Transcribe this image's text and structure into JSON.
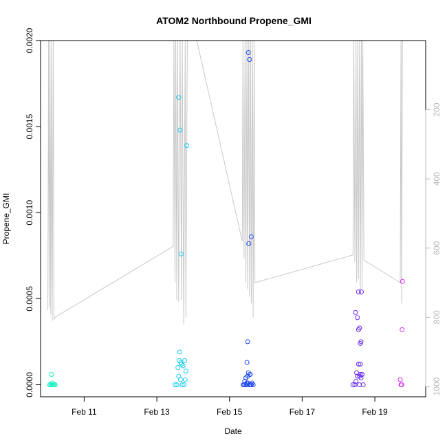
{
  "chart_data": {
    "type": "scatter",
    "title": "ATOM2 Northbound Propene_GMI",
    "xlabel": "Date",
    "ylabel": "Propene_GMI",
    "x_unit": "day of February 2017",
    "xlim": [
      9.8,
      20.4
    ],
    "ylim": [
      -7e-05,
      0.002
    ],
    "x_ticks": [
      {
        "value": 11,
        "label": "Feb 11"
      },
      {
        "value": 13,
        "label": "Feb 13"
      },
      {
        "value": 15,
        "label": "Feb 15"
      },
      {
        "value": 17,
        "label": "Feb 17"
      },
      {
        "value": 19,
        "label": "Feb 19"
      }
    ],
    "y_ticks": [
      {
        "value": 0.0,
        "label": "0.0000"
      },
      {
        "value": 0.0005,
        "label": "0.0005"
      },
      {
        "value": 0.001,
        "label": "0.0010"
      },
      {
        "value": 0.0015,
        "label": "0.0015"
      },
      {
        "value": 0.002,
        "label": "0.0020"
      }
    ],
    "right_axis": {
      "label": "",
      "lim": [
        1030,
        0
      ],
      "ticks": [
        {
          "value": 200,
          "label": "200"
        },
        {
          "value": 400,
          "label": "400"
        },
        {
          "value": 600,
          "label": "600"
        },
        {
          "value": 800,
          "label": "800"
        },
        {
          "value": 1000,
          "label": "1000"
        }
      ],
      "color": "#b5b5b5"
    },
    "grid": false,
    "legend": "none",
    "series": [
      {
        "color": "#1CF0C4",
        "marker": "open-circle",
        "x": [
          10.05,
          10.08,
          10.1,
          10.12,
          10.15,
          10.18,
          10.2,
          10.1,
          10.13
        ],
        "y": [
          0.0,
          0.0,
          0.0,
          1e-05,
          0.0,
          0.0,
          0.0,
          6e-05,
          0.0
        ]
      },
      {
        "color": "#1ACBF0",
        "marker": "open-circle",
        "x": [
          13.5,
          13.55,
          13.6,
          13.62,
          13.65,
          13.66,
          13.68,
          13.7,
          13.72,
          13.75,
          13.78,
          13.8,
          13.82,
          13.58,
          13.6,
          13.64,
          13.67,
          13.77,
          13.63
        ],
        "y": [
          0.0,
          0.0,
          5e-05,
          0.00014,
          3e-05,
          0.00013,
          0.00012,
          0.0,
          0.00011,
          0.0,
          3e-05,
          8e-05,
          0.00139,
          0.0001,
          0.00167,
          0.00148,
          0.00076,
          0.00014,
          0.00019
        ]
      },
      {
        "color": "#1D46F0",
        "marker": "open-circle",
        "x": [
          15.38,
          15.4,
          15.42,
          15.45,
          15.47,
          15.48,
          15.5,
          15.52,
          15.55,
          15.57,
          15.58,
          15.6,
          15.62,
          15.65,
          15.5,
          15.48,
          15.52,
          15.55,
          15.6,
          15.53,
          15.56,
          15.45,
          15.5,
          15.43
        ],
        "y": [
          0.0,
          0.0,
          2e-05,
          4e-05,
          0.0,
          0.00013,
          5e-05,
          7e-05,
          0.0,
          6e-05,
          0.0,
          0.0,
          1e-05,
          0.0,
          0.00025,
          1e-05,
          0.00193,
          0.00189,
          0.00086,
          0.00082,
          6e-05,
          4e-05,
          1e-05,
          0.0
        ]
      },
      {
        "color": "#6A2CF0",
        "marker": "open-circle",
        "x": [
          18.4,
          18.45,
          18.48,
          18.5,
          18.52,
          18.55,
          18.58,
          18.6,
          18.62,
          18.65,
          18.68,
          18.52,
          18.55,
          18.58,
          18.62,
          18.6,
          18.63,
          18.55,
          18.6,
          18.47,
          18.58,
          18.65
        ],
        "y": [
          0.0,
          0.0,
          2e-05,
          7e-05,
          5e-05,
          0.00012,
          0.0,
          6e-05,
          4e-05,
          6e-05,
          0.0,
          0.00039,
          0.00032,
          0.00033,
          0.00025,
          0.00024,
          0.00054,
          0.00054,
          0.00012,
          0.00042,
          5e-05,
          6e-05
        ]
      },
      {
        "color": "#D72BEF",
        "marker": "open-circle",
        "x": [
          19.7,
          19.72,
          19.74,
          19.75,
          19.76
        ],
        "y": [
          3e-05,
          0.0,
          0.0,
          0.00032,
          0.0006
        ]
      }
    ],
    "background_line": {
      "color": "#c8c8c8",
      "axis": "right",
      "x": [
        10.0,
        10.02,
        10.04,
        10.06,
        10.08,
        10.1,
        10.12,
        10.15,
        10.17,
        10.2,
        13.45,
        13.47,
        13.5,
        13.52,
        13.55,
        13.57,
        13.6,
        13.64,
        13.68,
        13.7,
        13.74,
        13.78,
        13.8,
        13.84,
        14.1,
        15.35,
        15.37,
        15.4,
        15.43,
        15.45,
        15.48,
        15.5,
        15.53,
        15.55,
        15.58,
        15.6,
        15.63,
        15.65,
        15.68,
        15.7,
        18.4,
        18.42,
        18.45,
        18.48,
        18.5,
        18.53,
        18.55,
        18.58,
        18.6,
        18.63,
        18.65,
        18.67,
        18.7,
        19.7,
        19.72,
        19.74,
        19.76,
        19.78
      ],
      "y": [
        780,
        0,
        770,
        0,
        790,
        0,
        810,
        0,
        805,
        800,
        595,
        0,
        700,
        0,
        750,
        0,
        755,
        0,
        750,
        0,
        820,
        0,
        800,
        0,
        0,
        580,
        0,
        630,
        0,
        700,
        0,
        720,
        0,
        740,
        0,
        760,
        0,
        800,
        0,
        700,
        620,
        0,
        640,
        0,
        700,
        0,
        690,
        0,
        735,
        0,
        715,
        0,
        635,
        700,
        0,
        760,
        0,
        0
      ]
    }
  }
}
